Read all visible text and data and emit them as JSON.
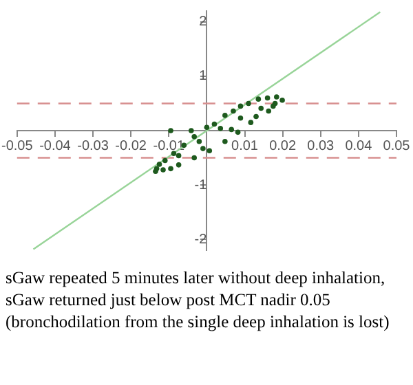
{
  "chart_data": {
    "type": "scatter",
    "xlim": [
      -0.05,
      0.05
    ],
    "ylim": [
      -2.2,
      2.2
    ],
    "xticks": [
      -0.05,
      -0.04,
      -0.03,
      -0.02,
      -0.01,
      0.01,
      0.02,
      0.03,
      0.04,
      0.05
    ],
    "yticks": [
      -2,
      -1,
      1,
      2
    ],
    "grid": false,
    "legend": false,
    "series": [
      {
        "type": "line",
        "color": "#98d498",
        "marker": "none",
        "line_style": "solid",
        "x": [
          -0.0457,
          0.0457
        ],
        "values": [
          -2.18,
          2.18
        ]
      },
      {
        "type": "scatter",
        "color": "#1e5a1e",
        "marker": "circle",
        "x": [
          -0.0132,
          -0.0087,
          -0.0033,
          0.0,
          0.0048,
          0.0089,
          0.0136,
          0.0184,
          0.0199,
          0.0163,
          0.0116,
          0.0082,
          0.0048,
          0.0007,
          -0.0033,
          -0.0074,
          -0.0115,
          0.0143,
          0.0089,
          0.0036,
          -0.002,
          -0.0074,
          -0.0095,
          -0.0041,
          -0.011,
          -0.006,
          0.002,
          0.007,
          0.011,
          0.016,
          0.018,
          0.0175,
          0.013,
          0.0065,
          -0.001,
          -0.0125,
          -0.0135,
          -0.0095
        ],
        "values": [
          -0.7,
          -0.42,
          -0.11,
          0.06,
          0.28,
          0.45,
          0.58,
          0.62,
          0.56,
          0.36,
          0.15,
          -0.03,
          -0.2,
          -0.37,
          -0.5,
          -0.63,
          -0.72,
          0.41,
          0.23,
          0.04,
          -0.2,
          -0.46,
          0.0,
          0.0,
          -0.55,
          -0.27,
          0.12,
          0.36,
          0.5,
          0.6,
          0.5,
          0.45,
          0.26,
          0.02,
          -0.33,
          -0.62,
          -0.75,
          -0.7
        ]
      }
    ],
    "ref_lines": [
      {
        "axis": "y",
        "value": 0.5,
        "color": "#d89090",
        "line_style": "dashed"
      },
      {
        "axis": "y",
        "value": -0.5,
        "color": "#d89090",
        "line_style": "dashed"
      }
    ],
    "annotations": [
      "sGaw repeated 5 minutes later without deep inhalation, sGaw returned just below post MCT nadir 0.05 (bronchodilation from the single deep inhalation is lost)"
    ]
  }
}
